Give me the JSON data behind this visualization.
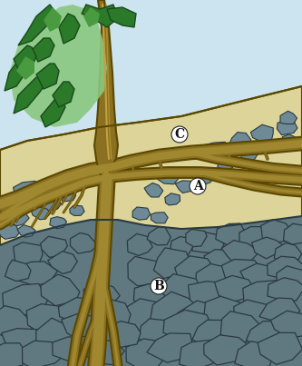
{
  "bg_sky_color": "#cce4f0",
  "soil_color": "#ddd49a",
  "rock_dark_color": "#607880",
  "rock_mid_color": "#6e8a96",
  "rock_light_color": "#8a9ea8",
  "rock_outline_color": "#2a3a42",
  "root_fill": "#8a7020",
  "root_dark": "#5a4800",
  "root_mid": "#a08830",
  "leaf_dark": "#2a7a2a",
  "leaf_mid": "#4a9a40",
  "leaf_light": "#8ac880",
  "label_A": "A",
  "label_B": "B",
  "label_C": "C",
  "fig_width": 3.33,
  "fig_height": 4.03,
  "dpi": 100
}
